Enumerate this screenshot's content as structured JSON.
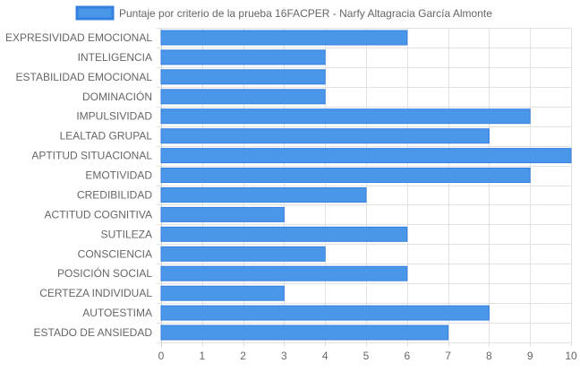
{
  "chart_data": {
    "type": "bar",
    "orientation": "horizontal",
    "legend_position": "top",
    "grid": true,
    "series": [
      {
        "name": "Puntaje por criterio de la prueba 16FACPER - Narfy Altagracia García Almonte",
        "color": "#4a97ea",
        "border_color": "#3580df",
        "values": [
          6,
          4,
          4,
          4,
          9,
          8,
          10,
          9,
          5,
          3,
          6,
          4,
          6,
          3,
          8,
          7
        ]
      }
    ],
    "categories": [
      "EXPRESIVIDAD EMOCIONAL",
      "INTELIGENCIA",
      "ESTABILIDAD EMOCIONAL",
      "DOMINACIÓN",
      "IMPULSIVIDAD",
      "LEALTAD GRUPAL",
      "APTITUD SITUACIONAL",
      "EMOTIVIDAD",
      "CREDIBILIDAD",
      "ACTITUD COGNITIVA",
      "SUTILEZA",
      "CONSCIENCIA",
      "POSICIÓN SOCIAL",
      "CERTEZA INDIVIDUAL",
      "AUTOESTIMA",
      "ESTADO DE ANSIEDAD"
    ],
    "xlim": [
      0,
      10
    ],
    "x_ticks": [
      "0",
      "1",
      "2",
      "3",
      "4",
      "5",
      "6",
      "7",
      "8",
      "9",
      "10"
    ]
  }
}
